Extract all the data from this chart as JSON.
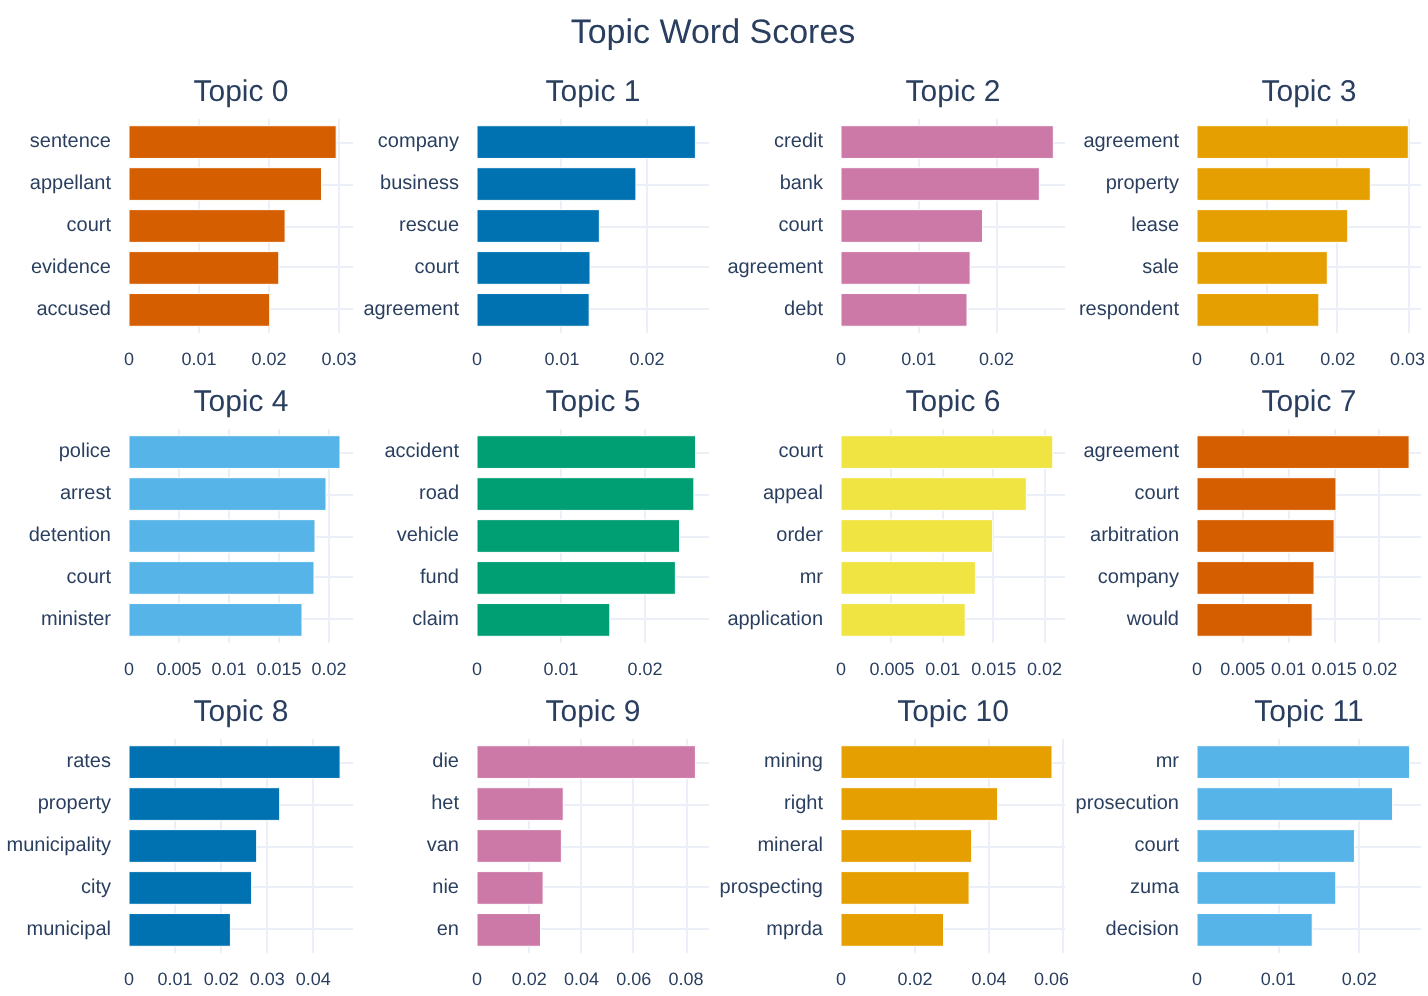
{
  "chart_data": [
    {
      "type": "other",
      "title": "Topic Word Scores"
    },
    {
      "type": "bar",
      "orientation": "horizontal",
      "title": "Topic 0",
      "categories": [
        "sentence",
        "appellant",
        "court",
        "evidence",
        "accused"
      ],
      "values": [
        0.0296,
        0.0275,
        0.0223,
        0.0214,
        0.0201
      ],
      "color": "#d55e00",
      "xlim": [
        0,
        0.032
      ],
      "xticks": [
        0,
        0.01,
        0.02,
        0.03
      ],
      "grid": true
    },
    {
      "type": "bar",
      "orientation": "horizontal",
      "title": "Topic 1",
      "categories": [
        "company",
        "business",
        "rescue",
        "court",
        "agreement"
      ],
      "values": [
        0.0257,
        0.0187,
        0.0144,
        0.0133,
        0.0132
      ],
      "color": "#0072b2",
      "xlim": [
        0,
        0.0273
      ],
      "xticks": [
        0,
        0.01,
        0.02
      ],
      "grid": true
    },
    {
      "type": "bar",
      "orientation": "horizontal",
      "title": "Topic 2",
      "categories": [
        "credit",
        "bank",
        "court",
        "agreement",
        "debt"
      ],
      "values": [
        0.0273,
        0.0255,
        0.0182,
        0.0166,
        0.0162
      ],
      "color": "#cc79a7",
      "xlim": [
        0,
        0.0288
      ],
      "xticks": [
        0,
        0.01,
        0.02
      ],
      "grid": true
    },
    {
      "type": "bar",
      "orientation": "horizontal",
      "title": "Topic 3",
      "categories": [
        "agreement",
        "property",
        "lease",
        "sale",
        "respondent"
      ],
      "values": [
        0.03,
        0.0246,
        0.0214,
        0.0185,
        0.0173
      ],
      "color": "#e69f00",
      "xlim": [
        0,
        0.0318
      ],
      "xticks": [
        0,
        0.01,
        0.02,
        0.03
      ],
      "grid": true
    },
    {
      "type": "bar",
      "orientation": "horizontal",
      "title": "Topic 4",
      "categories": [
        "police",
        "arrest",
        "detention",
        "court",
        "minister"
      ],
      "values": [
        0.0211,
        0.0197,
        0.0186,
        0.0185,
        0.0173
      ],
      "color": "#56b4e9",
      "xlim": [
        0,
        0.0224
      ],
      "xticks": [
        0,
        0.005,
        0.01,
        0.015,
        0.02
      ],
      "grid": true
    },
    {
      "type": "bar",
      "orientation": "horizontal",
      "title": "Topic 5",
      "categories": [
        "accident",
        "road",
        "vehicle",
        "fund",
        "claim"
      ],
      "values": [
        0.026,
        0.0258,
        0.0241,
        0.0236,
        0.0158
      ],
      "color": "#009e73",
      "xlim": [
        0,
        0.0276
      ],
      "xticks": [
        0,
        0.01,
        0.02
      ],
      "grid": true
    },
    {
      "type": "bar",
      "orientation": "horizontal",
      "title": "Topic 6",
      "categories": [
        "court",
        "appeal",
        "order",
        "mr",
        "application"
      ],
      "values": [
        0.0208,
        0.0182,
        0.0149,
        0.0132,
        0.0122
      ],
      "color": "#f0e442",
      "xlim": [
        0,
        0.022
      ],
      "xticks": [
        0,
        0.005,
        0.01,
        0.015,
        0.02
      ],
      "grid": true
    },
    {
      "type": "bar",
      "orientation": "horizontal",
      "title": "Topic 7",
      "categories": [
        "agreement",
        "court",
        "arbitration",
        "company",
        "would"
      ],
      "values": [
        0.0232,
        0.0152,
        0.015,
        0.0128,
        0.0126
      ],
      "color": "#d55e00",
      "xlim": [
        0,
        0.0245
      ],
      "xticks": [
        0,
        0.005,
        0.01,
        0.015,
        0.02
      ],
      "grid": true
    },
    {
      "type": "bar",
      "orientation": "horizontal",
      "title": "Topic 8",
      "categories": [
        "rates",
        "property",
        "municipality",
        "city",
        "municipal"
      ],
      "values": [
        0.0458,
        0.0327,
        0.0277,
        0.0266,
        0.022
      ],
      "color": "#0072b2",
      "xlim": [
        0,
        0.0486
      ],
      "xticks": [
        0,
        0.01,
        0.02,
        0.03,
        0.04
      ],
      "grid": true
    },
    {
      "type": "bar",
      "orientation": "horizontal",
      "title": "Topic 9",
      "categories": [
        "die",
        "het",
        "van",
        "nie",
        "en"
      ],
      "values": [
        0.0836,
        0.033,
        0.0323,
        0.0253,
        0.0243
      ],
      "color": "#cc79a7",
      "xlim": [
        0,
        0.0888
      ],
      "xticks": [
        0,
        0.02,
        0.04,
        0.06,
        0.08
      ],
      "grid": true
    },
    {
      "type": "bar",
      "orientation": "horizontal",
      "title": "Topic 10",
      "categories": [
        "mining",
        "right",
        "mineral",
        "prospecting",
        "mprda"
      ],
      "values": [
        0.057,
        0.0423,
        0.0353,
        0.0346,
        0.0277
      ],
      "color": "#e69f00",
      "xlim": [
        0,
        0.0605
      ],
      "xticks": [
        0,
        0.02,
        0.04,
        0.06
      ],
      "grid": true
    },
    {
      "type": "bar",
      "orientation": "horizontal",
      "title": "Topic 11",
      "categories": [
        "mr",
        "prosecution",
        "court",
        "zuma",
        "decision"
      ],
      "values": [
        0.0262,
        0.0241,
        0.0194,
        0.0171,
        0.0142
      ],
      "color": "#56b4e9",
      "xlim": [
        0,
        0.0276
      ],
      "xticks": [
        0,
        0.01,
        0.02
      ],
      "grid": true
    }
  ]
}
